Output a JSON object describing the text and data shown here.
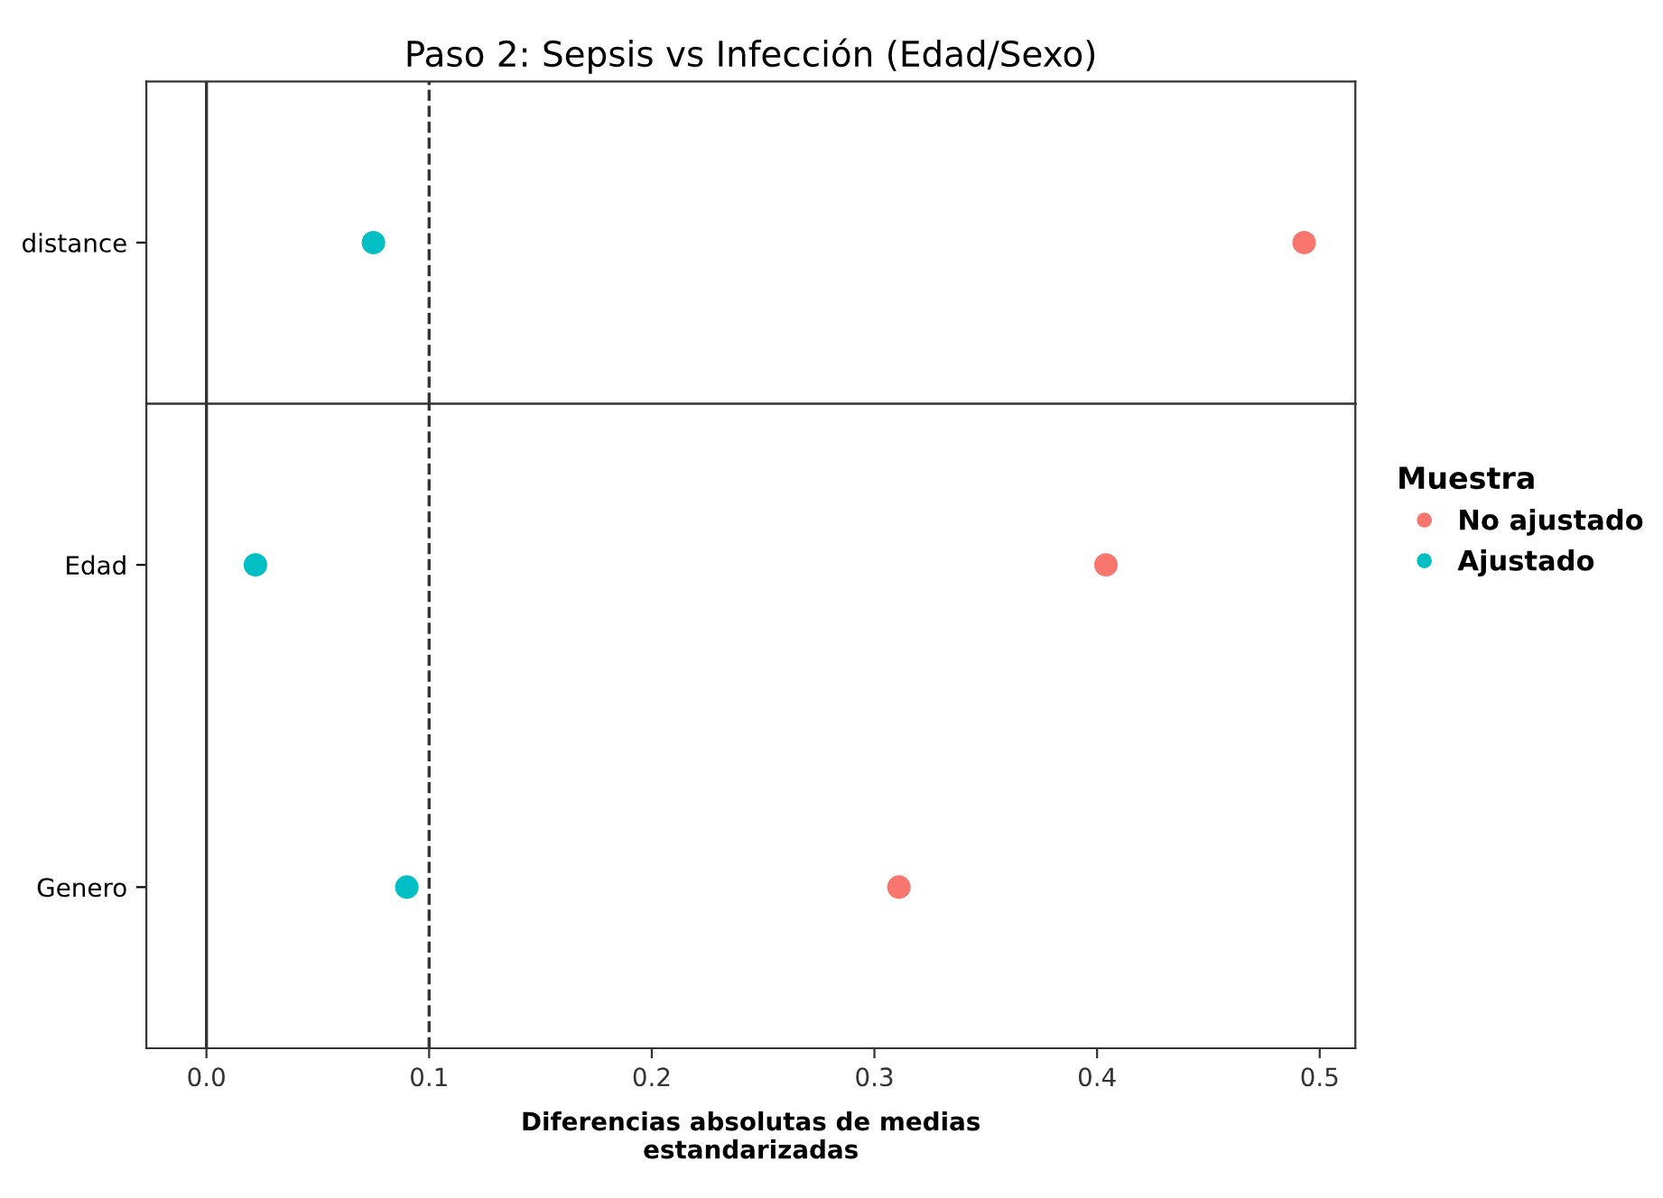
{
  "chart_data": [
    {
      "type": "scatter",
      "title": "Paso 2: Sepsis vs Infección (Edad/Sexo)",
      "categories": [
        "distance"
      ],
      "orientation": "horizontal",
      "marker": "circle",
      "tick_labels": "y",
      "legend": "right",
      "legend_title": "Muestra",
      "xlim": [
        -0.027,
        0.516
      ],
      "series": [
        {
          "name": "No ajustado",
          "color": "#f8766d",
          "values": [
            0.493
          ]
        },
        {
          "name": "Ajustado",
          "color": "#00bfc4",
          "values": [
            0.075
          ]
        }
      ],
      "ref_lines": [
        {
          "axis": "x",
          "value": 0,
          "color": "#333333",
          "line_style": "solid"
        },
        {
          "axis": "x",
          "value": 0.1,
          "color": "#333333",
          "line_style": "dashed"
        }
      ]
    },
    {
      "type": "scatter",
      "categories": [
        "Edad",
        "Genero"
      ],
      "orientation": "horizontal",
      "marker": "circle",
      "xlabel": "Diferencias absolutas de medias\nestandarizadas",
      "xlim": [
        -0.027,
        0.516
      ],
      "xticks": [
        {
          "value": 0,
          "label": "0.0"
        },
        0.1,
        0.2,
        0.3,
        0.4,
        0.5
      ],
      "series": [
        {
          "color": "#f8766d",
          "values": [
            0.404,
            0.311
          ]
        },
        {
          "color": "#00bfc4",
          "values": [
            0.022,
            0.09
          ]
        }
      ],
      "ref_lines": [
        {
          "axis": "x",
          "value": 0,
          "color": "#333333",
          "line_style": "solid"
        },
        {
          "axis": "x",
          "value": 0.1,
          "color": "#333333",
          "line_style": "dashed"
        }
      ]
    }
  ]
}
